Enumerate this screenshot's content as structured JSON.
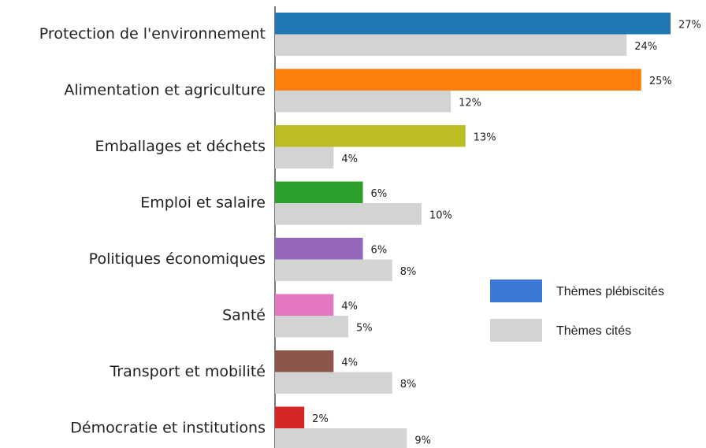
{
  "chart_data": {
    "type": "bar",
    "orientation": "horizontal",
    "categories": [
      "Protection de l'environnement",
      "Alimentation et agriculture",
      "Emballages et déchets",
      "Emploi et salaire",
      "Politiques économiques",
      "Santé",
      "Transport et mobilité",
      "Démocratie et institutions"
    ],
    "series": [
      {
        "name": "Thèmes plébiscités",
        "color": "#3c78d8",
        "colors": [
          "#1f77b4",
          "#ff7f0e",
          "#bcbd22",
          "#2ca02c",
          "#9467bd",
          "#e377c2",
          "#8c564b",
          "#d62728"
        ],
        "values": [
          27,
          25,
          13,
          6,
          6,
          4,
          4,
          2
        ],
        "value_labels": [
          "27%",
          "25%",
          "13%",
          "6%",
          "6%",
          "4%",
          "4%",
          "2%"
        ]
      },
      {
        "name": "Thèmes cités",
        "color": "#d3d3d3",
        "values": [
          24,
          12,
          4,
          10,
          8,
          5,
          8,
          9
        ],
        "value_labels": [
          "24%",
          "12%",
          "4%",
          "10%",
          "8%",
          "5%",
          "8%",
          "9%"
        ]
      }
    ],
    "legend": "right"
  }
}
